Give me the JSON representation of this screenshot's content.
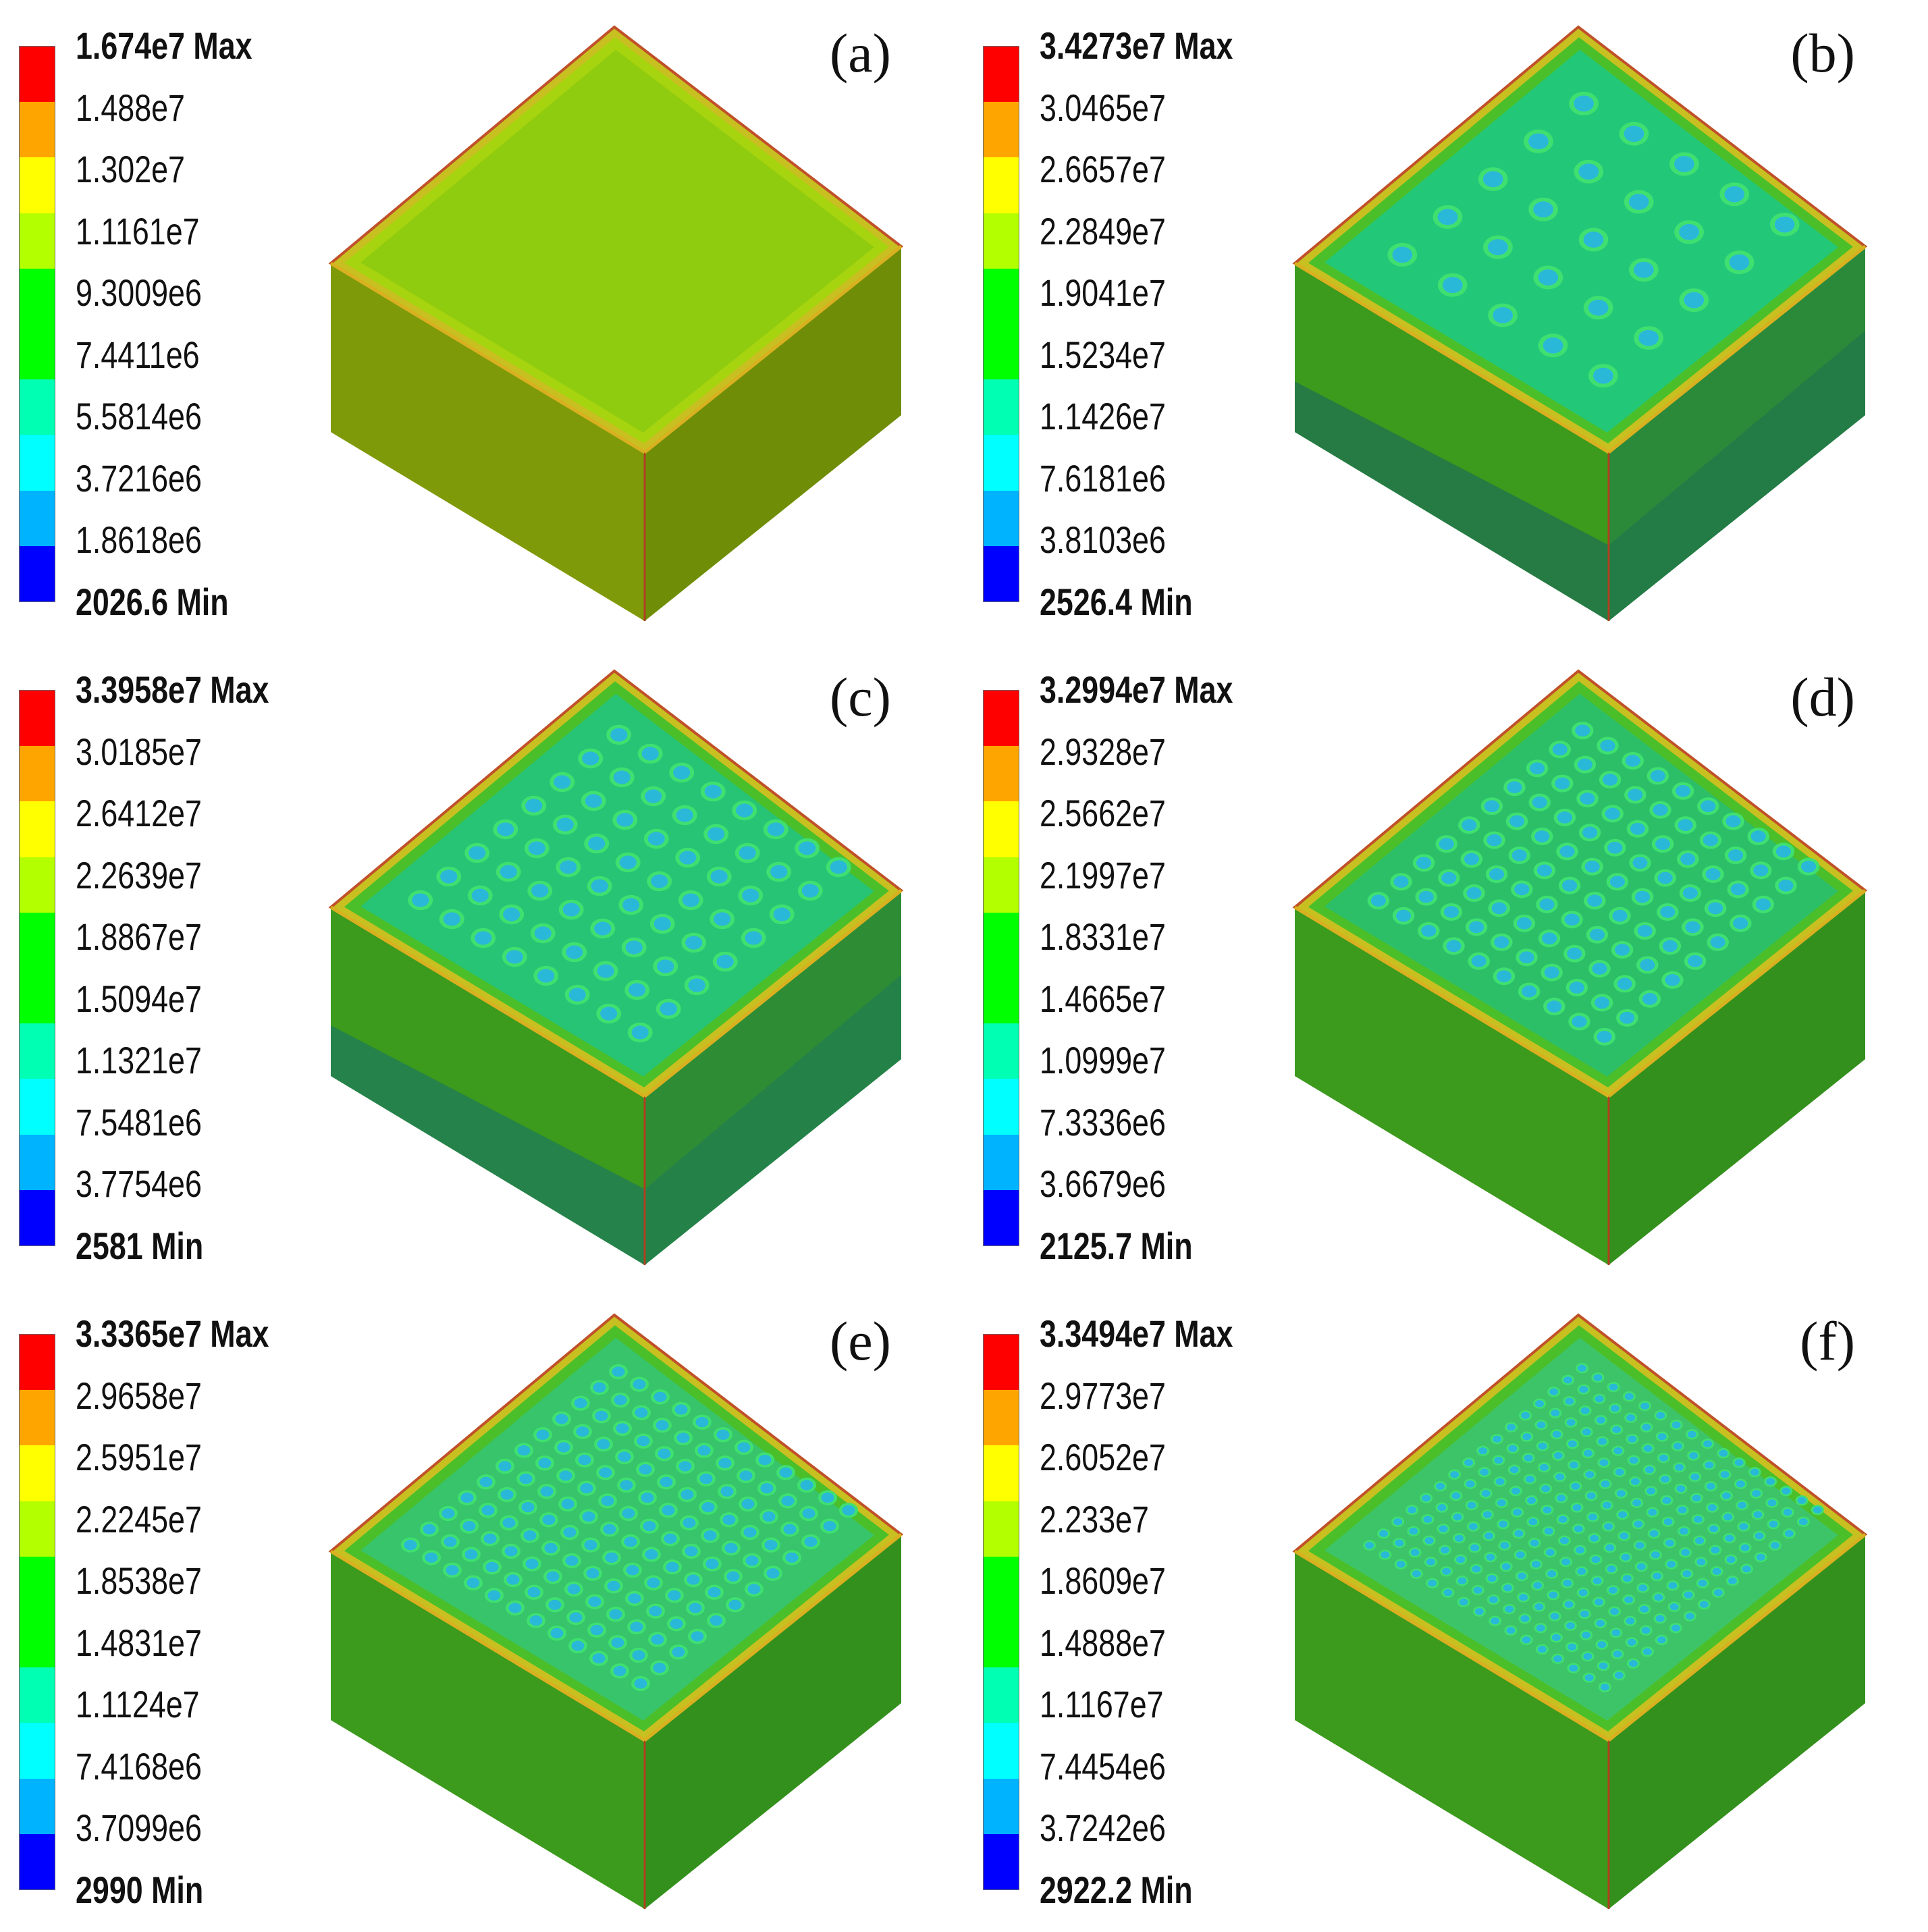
{
  "colormap": [
    "#ff0000",
    "#ffa500",
    "#ffff00",
    "#b3ff00",
    "#00ff00",
    "#00ffb3",
    "#00ffff",
    "#00b3ff",
    "#0000ff"
  ],
  "panels": [
    {
      "label": "(a)",
      "ticks": [
        "1.674e7 Max",
        "1.488e7",
        "1.302e7",
        "1.1161e7",
        "9.3009e6",
        "7.4411e6",
        "5.5814e6",
        "3.7216e6",
        "1.8618e6",
        "2026.6 Min"
      ],
      "dot_grid": 0,
      "top_color": "#8fcb0e",
      "side_left_color": "#7f9a08",
      "side_right_color": "#6f8d06",
      "band_color": ""
    },
    {
      "label": "(b)",
      "ticks": [
        "3.4273e7 Max",
        "3.0465e7",
        "2.6657e7",
        "2.2849e7",
        "1.9041e7",
        "1.5234e7",
        "1.1426e7",
        "7.6181e6",
        "3.8103e6",
        "2526.4 Min"
      ],
      "dot_grid": 5,
      "top_color": "#22c878",
      "side_left_color": "#3c9a1c",
      "side_right_color": "#2a8a3a",
      "band_color": "#1e7050"
    },
    {
      "label": "(c)",
      "ticks": [
        "3.3958e7 Max",
        "3.0185e7",
        "2.6412e7",
        "2.2639e7",
        "1.8867e7",
        "1.5094e7",
        "1.1321e7",
        "7.5481e6",
        "3.7754e6",
        "2581 Min"
      ],
      "dot_grid": 8,
      "top_color": "#26c474",
      "side_left_color": "#3c9a1c",
      "side_right_color": "#2e8c34",
      "band_color": "#1e7a5a"
    },
    {
      "label": "(d)",
      "ticks": [
        "3.2994e7 Max",
        "2.9328e7",
        "2.5662e7",
        "2.1997e7",
        "1.8331e7",
        "1.4665e7",
        "1.0999e7",
        "7.3336e6",
        "3.6679e6",
        "2125.7 Min"
      ],
      "dot_grid": 10,
      "top_color": "#2cbf68",
      "side_left_color": "#3c9a1c",
      "side_right_color": "#34901c",
      "band_color": ""
    },
    {
      "label": "(e)",
      "ticks": [
        "3.3365e7 Max",
        "2.9658e7",
        "2.5951e7",
        "2.2245e7",
        "1.8538e7",
        "1.4831e7",
        "1.1124e7",
        "7.4168e6",
        "3.7099e6",
        "2990 Min"
      ],
      "dot_grid": 12,
      "top_color": "#38c46a",
      "side_left_color": "#3c9a1c",
      "side_right_color": "#34901c",
      "band_color": ""
    },
    {
      "label": "(f)",
      "ticks": [
        "3.3494e7 Max",
        "2.9773e7",
        "2.6052e7",
        "2.233e7",
        "1.8609e7",
        "1.4888e7",
        "1.1167e7",
        "7.4454e6",
        "3.7242e6",
        "2922.2 Min"
      ],
      "dot_grid": 16,
      "top_color": "#3ec468",
      "side_left_color": "#3c9a1c",
      "side_right_color": "#34901c",
      "band_color": ""
    }
  ]
}
